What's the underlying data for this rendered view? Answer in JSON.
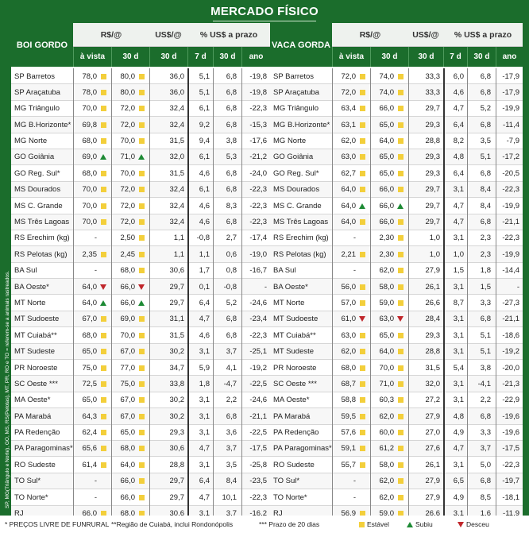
{
  "title": "MERCADO FÍSICO",
  "side_note": "SP, MG(Triângulo e Norte), GO, MS, RS(Pelotas), MT, PR, RO e TO = referem-se a animais rastreados.",
  "headers": {
    "rs_group": "R$/@",
    "us_group": "US$/@",
    "pct_group": "% US$ a prazo",
    "a_vista": "à vista",
    "d30": "30 d",
    "us30": "30 d",
    "d7": "7 d",
    "p30": "30 d",
    "ano": "ano"
  },
  "boi": {
    "label": "BOI GORDO",
    "rows": [
      {
        "name": "SP Barretos",
        "av": "78,0",
        "m1": "sq",
        "d30": "80,0",
        "m2": "sq",
        "us": "36,0",
        "d7": "5,1",
        "p30": "6,8",
        "ano": "-19,8"
      },
      {
        "name": "SP Araçatuba",
        "av": "78,0",
        "m1": "sq",
        "d30": "80,0",
        "m2": "sq",
        "us": "36,0",
        "d7": "5,1",
        "p30": "6,8",
        "ano": "-19,8"
      },
      {
        "name": "MG Triângulo",
        "av": "70,0",
        "m1": "sq",
        "d30": "72,0",
        "m2": "sq",
        "us": "32,4",
        "d7": "6,1",
        "p30": "6,8",
        "ano": "-22,3"
      },
      {
        "name": "MG B.Horizonte*",
        "av": "69,8",
        "m1": "sq",
        "d30": "72,0",
        "m2": "sq",
        "us": "32,4",
        "d7": "9,2",
        "p30": "6,8",
        "ano": "-15,3"
      },
      {
        "name": "MG Norte",
        "av": "68,0",
        "m1": "sq",
        "d30": "70,0",
        "m2": "sq",
        "us": "31,5",
        "d7": "9,4",
        "p30": "3,8",
        "ano": "-17,6"
      },
      {
        "name": "GO Goiânia",
        "av": "69,0",
        "m1": "up",
        "d30": "71,0",
        "m2": "up",
        "us": "32,0",
        "d7": "6,1",
        "p30": "5,3",
        "ano": "-21,2"
      },
      {
        "name": "GO Reg. Sul*",
        "av": "68,0",
        "m1": "sq",
        "d30": "70,0",
        "m2": "sq",
        "us": "31,5",
        "d7": "4,6",
        "p30": "6,8",
        "ano": "-24,0"
      },
      {
        "name": "MS Dourados",
        "av": "70,0",
        "m1": "sq",
        "d30": "72,0",
        "m2": "sq",
        "us": "32,4",
        "d7": "6,1",
        "p30": "6,8",
        "ano": "-22,3"
      },
      {
        "name": "MS C. Grande",
        "av": "70,0",
        "m1": "sq",
        "d30": "72,0",
        "m2": "sq",
        "us": "32,4",
        "d7": "4,6",
        "p30": "8,3",
        "ano": "-22,3"
      },
      {
        "name": "MS Três Lagoas",
        "av": "70,0",
        "m1": "sq",
        "d30": "72,0",
        "m2": "sq",
        "us": "32,4",
        "d7": "4,6",
        "p30": "6,8",
        "ano": "-22,3"
      },
      {
        "name": "RS Erechim (kg)",
        "av": "-",
        "m1": "",
        "d30": "2,50",
        "m2": "sq",
        "us": "1,1",
        "d7": "-0,8",
        "p30": "2,7",
        "ano": "-17,4"
      },
      {
        "name": "RS Pelotas (kg)",
        "av": "2,35",
        "m1": "sq",
        "d30": "2,45",
        "m2": "sq",
        "us": "1,1",
        "d7": "1,1",
        "p30": "0,6",
        "ano": "-19,0"
      },
      {
        "name": "BA Sul",
        "av": "-",
        "m1": "",
        "d30": "68,0",
        "m2": "sq",
        "us": "30,6",
        "d7": "1,7",
        "p30": "0,8",
        "ano": "-16,7"
      },
      {
        "name": "BA Oeste*",
        "av": "64,0",
        "m1": "down",
        "d30": "66,0",
        "m2": "down",
        "us": "29,7",
        "d7": "0,1",
        "p30": "-0,8",
        "ano": "-"
      },
      {
        "name": "MT Norte",
        "av": "64,0",
        "m1": "up",
        "d30": "66,0",
        "m2": "up",
        "us": "29,7",
        "d7": "6,4",
        "p30": "5,2",
        "ano": "-24,6"
      },
      {
        "name": "MT Sudoeste",
        "av": "67,0",
        "m1": "sq",
        "d30": "69,0",
        "m2": "sq",
        "us": "31,1",
        "d7": "4,7",
        "p30": "6,8",
        "ano": "-23,4"
      },
      {
        "name": "MT Cuiabá**",
        "av": "68,0",
        "m1": "sq",
        "d30": "70,0",
        "m2": "sq",
        "us": "31,5",
        "d7": "4,6",
        "p30": "6,8",
        "ano": "-22,3"
      },
      {
        "name": "MT Sudeste",
        "av": "65,0",
        "m1": "sq",
        "d30": "67,0",
        "m2": "sq",
        "us": "30,2",
        "d7": "3,1",
        "p30": "3,7",
        "ano": "-25,1"
      },
      {
        "name": "PR Noroeste",
        "av": "75,0",
        "m1": "sq",
        "d30": "77,0",
        "m2": "sq",
        "us": "34,7",
        "d7": "5,9",
        "p30": "4,1",
        "ano": "-19,2"
      },
      {
        "name": "SC Oeste ***",
        "av": "72,5",
        "m1": "sq",
        "d30": "75,0",
        "m2": "sq",
        "us": "33,8",
        "d7": "1,8",
        "p30": "-4,7",
        "ano": "-22,5"
      },
      {
        "name": "MA Oeste*",
        "av": "65,0",
        "m1": "sq",
        "d30": "67,0",
        "m2": "sq",
        "us": "30,2",
        "d7": "3,1",
        "p30": "2,2",
        "ano": "-24,6"
      },
      {
        "name": "PA Marabá",
        "av": "64,3",
        "m1": "sq",
        "d30": "67,0",
        "m2": "sq",
        "us": "30,2",
        "d7": "3,1",
        "p30": "6,8",
        "ano": "-21,1"
      },
      {
        "name": "PA Redenção",
        "av": "62,4",
        "m1": "sq",
        "d30": "65,0",
        "m2": "sq",
        "us": "29,3",
        "d7": "3,1",
        "p30": "3,6",
        "ano": "-22,5"
      },
      {
        "name": "PA Paragominas*",
        "av": "65,6",
        "m1": "sq",
        "d30": "68,0",
        "m2": "sq",
        "us": "30,6",
        "d7": "4,7",
        "p30": "3,7",
        "ano": "-17,5"
      },
      {
        "name": "RO Sudeste",
        "av": "61,4",
        "m1": "sq",
        "d30": "64,0",
        "m2": "sq",
        "us": "28,8",
        "d7": "3,1",
        "p30": "3,5",
        "ano": "-25,8"
      },
      {
        "name": "TO Sul*",
        "av": "-",
        "m1": "",
        "d30": "66,0",
        "m2": "sq",
        "us": "29,7",
        "d7": "6,4",
        "p30": "8,4",
        "ano": "-23,5"
      },
      {
        "name": "TO Norte*",
        "av": "-",
        "m1": "",
        "d30": "66,0",
        "m2": "sq",
        "us": "29,7",
        "d7": "4,7",
        "p30": "10,1",
        "ano": "-22,3"
      },
      {
        "name": "RJ",
        "av": "66,0",
        "m1": "sq",
        "d30": "68,0",
        "m2": "sq",
        "us": "30,6",
        "d7": "3,1",
        "p30": "3,7",
        "ano": "-16,2"
      }
    ]
  },
  "vaca": {
    "label": "VACA GORDA",
    "rows": [
      {
        "name": "SP Barretos",
        "av": "72,0",
        "m1": "sq",
        "d30": "74,0",
        "m2": "sq",
        "us": "33,3",
        "d7": "6,0",
        "p30": "6,8",
        "ano": "-17,9"
      },
      {
        "name": "SP Araçatuba",
        "av": "72,0",
        "m1": "sq",
        "d30": "74,0",
        "m2": "sq",
        "us": "33,3",
        "d7": "4,6",
        "p30": "6,8",
        "ano": "-17,9"
      },
      {
        "name": "MG Triângulo",
        "av": "63,4",
        "m1": "sq",
        "d30": "66,0",
        "m2": "sq",
        "us": "29,7",
        "d7": "4,7",
        "p30": "5,2",
        "ano": "-19,9"
      },
      {
        "name": "MG B.Horizonte*",
        "av": "63,1",
        "m1": "sq",
        "d30": "65,0",
        "m2": "sq",
        "us": "29,3",
        "d7": "6,4",
        "p30": "6,8",
        "ano": "-11,4"
      },
      {
        "name": "MG Norte",
        "av": "62,0",
        "m1": "sq",
        "d30": "64,0",
        "m2": "sq",
        "us": "28,8",
        "d7": "8,2",
        "p30": "3,5",
        "ano": "-7,9"
      },
      {
        "name": "GO Goiânia",
        "av": "63,0",
        "m1": "sq",
        "d30": "65,0",
        "m2": "sq",
        "us": "29,3",
        "d7": "4,8",
        "p30": "5,1",
        "ano": "-17,2"
      },
      {
        "name": "GO Reg. Sul*",
        "av": "62,7",
        "m1": "sq",
        "d30": "65,0",
        "m2": "sq",
        "us": "29,3",
        "d7": "6,4",
        "p30": "6,8",
        "ano": "-20,5"
      },
      {
        "name": "MS Dourados",
        "av": "64,0",
        "m1": "sq",
        "d30": "66,0",
        "m2": "sq",
        "us": "29,7",
        "d7": "3,1",
        "p30": "8,4",
        "ano": "-22,3"
      },
      {
        "name": "MS C. Grande",
        "av": "64,0",
        "m1": "up",
        "d30": "66,0",
        "m2": "up",
        "us": "29,7",
        "d7": "4,7",
        "p30": "8,4",
        "ano": "-19,9"
      },
      {
        "name": "MS Três Lagoas",
        "av": "64,0",
        "m1": "sq",
        "d30": "66,0",
        "m2": "sq",
        "us": "29,7",
        "d7": "4,7",
        "p30": "6,8",
        "ano": "-21,1"
      },
      {
        "name": "RS Erechim (kg)",
        "av": "-",
        "m1": "",
        "d30": "2,30",
        "m2": "sq",
        "us": "1,0",
        "d7": "3,1",
        "p30": "2,3",
        "ano": "-22,3"
      },
      {
        "name": "RS Pelotas (kg)",
        "av": "2,21",
        "m1": "sq",
        "d30": "2,30",
        "m2": "sq",
        "us": "1,0",
        "d7": "1,0",
        "p30": "2,3",
        "ano": "-19,9"
      },
      {
        "name": "BA Sul",
        "av": "-",
        "m1": "",
        "d30": "62,0",
        "m2": "sq",
        "us": "27,9",
        "d7": "1,5",
        "p30": "1,8",
        "ano": "-14,4"
      },
      {
        "name": "BA Oeste*",
        "av": "56,0",
        "m1": "sq",
        "d30": "58,0",
        "m2": "sq",
        "us": "26,1",
        "d7": "3,1",
        "p30": "1,5",
        "ano": "-"
      },
      {
        "name": "MT Norte",
        "av": "57,0",
        "m1": "sq",
        "d30": "59,0",
        "m2": "sq",
        "us": "26,6",
        "d7": "8,7",
        "p30": "3,3",
        "ano": "-27,3"
      },
      {
        "name": "MT Sudoeste",
        "av": "61,0",
        "m1": "down",
        "d30": "63,0",
        "m2": "down",
        "us": "28,4",
        "d7": "3,1",
        "p30": "6,8",
        "ano": "-21,1"
      },
      {
        "name": "MT Cuiabá**",
        "av": "63,0",
        "m1": "sq",
        "d30": "65,0",
        "m2": "sq",
        "us": "29,3",
        "d7": "3,1",
        "p30": "5,1",
        "ano": "-18,6"
      },
      {
        "name": "MT Sudeste",
        "av": "62,0",
        "m1": "sq",
        "d30": "64,0",
        "m2": "sq",
        "us": "28,8",
        "d7": "3,1",
        "p30": "5,1",
        "ano": "-19,2"
      },
      {
        "name": "PR Noroeste",
        "av": "68,0",
        "m1": "sq",
        "d30": "70,0",
        "m2": "sq",
        "us": "31,5",
        "d7": "5,4",
        "p30": "3,8",
        "ano": "-20,0"
      },
      {
        "name": "SC Oeste ***",
        "av": "68,7",
        "m1": "sq",
        "d30": "71,0",
        "m2": "sq",
        "us": "32,0",
        "d7": "3,1",
        "p30": "-4,1",
        "ano": "-21,3"
      },
      {
        "name": "MA Oeste*",
        "av": "58,8",
        "m1": "sq",
        "d30": "60,3",
        "m2": "sq",
        "us": "27,2",
        "d7": "3,1",
        "p30": "2,2",
        "ano": "-22,9"
      },
      {
        "name": "PA Marabá",
        "av": "59,5",
        "m1": "sq",
        "d30": "62,0",
        "m2": "sq",
        "us": "27,9",
        "d7": "4,8",
        "p30": "6,8",
        "ano": "-19,6"
      },
      {
        "name": "PA Redenção",
        "av": "57,6",
        "m1": "sq",
        "d30": "60,0",
        "m2": "sq",
        "us": "27,0",
        "d7": "4,9",
        "p30": "3,3",
        "ano": "-19,6"
      },
      {
        "name": "PA Paragominas*",
        "av": "59,1",
        "m1": "sq",
        "d30": "61,2",
        "m2": "sq",
        "us": "27,6",
        "d7": "4,7",
        "p30": "3,7",
        "ano": "-17,5"
      },
      {
        "name": "RO Sudeste",
        "av": "55,7",
        "m1": "sq",
        "d30": "58,0",
        "m2": "sq",
        "us": "26,1",
        "d7": "3,1",
        "p30": "5,0",
        "ano": "-22,3"
      },
      {
        "name": "TO Sul*",
        "av": "-",
        "m1": "",
        "d30": "62,0",
        "m2": "sq",
        "us": "27,9",
        "d7": "6,5",
        "p30": "6,8",
        "ano": "-19,7"
      },
      {
        "name": "TO Norte*",
        "av": "-",
        "m1": "",
        "d30": "62,0",
        "m2": "sq",
        "us": "27,9",
        "d7": "4,9",
        "p30": "8,5",
        "ano": "-18,1"
      },
      {
        "name": "RJ",
        "av": "56,9",
        "m1": "sq",
        "d30": "59,0",
        "m2": "sq",
        "us": "26,6",
        "d7": "3,1",
        "p30": "1,6",
        "ano": "-11,9"
      }
    ]
  },
  "footer": {
    "note1": "* PREÇOS LIVRE DE FUNRURAL",
    "note2": "**Região de Cuiabá, inclui Rondonópolis",
    "note3": "*** Prazo de 20 dias",
    "estavel": "Estável",
    "subiu": "Subiu",
    "desceu": "Desceu"
  },
  "colors": {
    "green": "#1b6d2c",
    "stable": "#f3cf3b",
    "up": "#1d8a34",
    "down": "#c0262b"
  }
}
